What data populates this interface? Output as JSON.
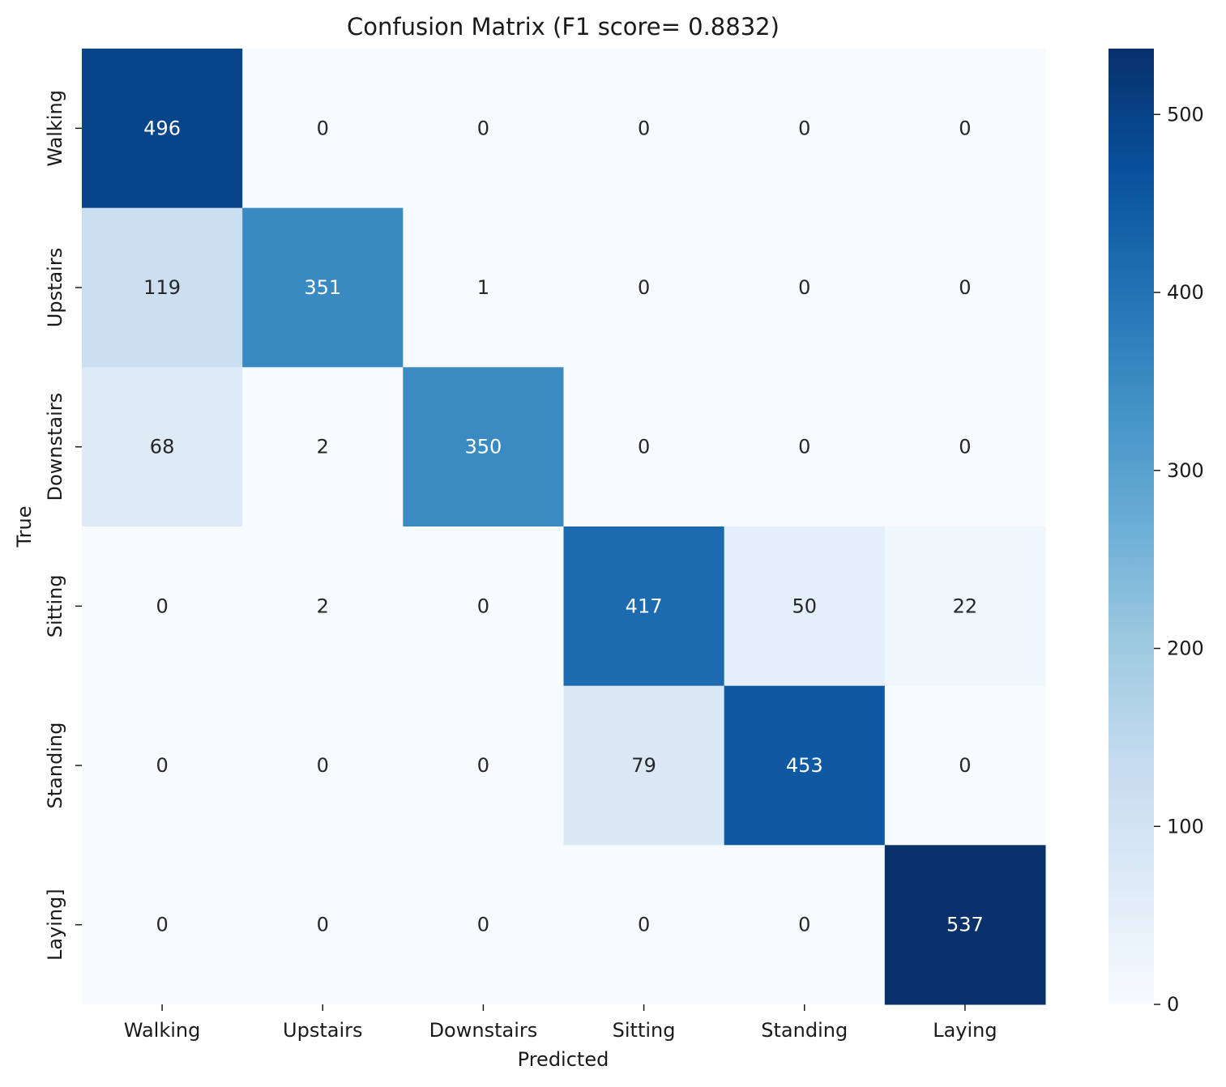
{
  "chart_data": {
    "type": "heatmap",
    "title": "Confusion Matrix (F1 score= 0.8832)",
    "xlabel": "Predicted",
    "ylabel": "True",
    "x_categories": [
      "Walking",
      "Upstairs",
      "Downstairs",
      "Sitting",
      "Standing",
      "Laying"
    ],
    "y_categories": [
      "Walking",
      "Upstairs",
      "Downstairs",
      "Sitting",
      "Standing",
      "Laying]"
    ],
    "values": [
      [
        496,
        0,
        0,
        0,
        0,
        0
      ],
      [
        119,
        351,
        1,
        0,
        0,
        0
      ],
      [
        68,
        2,
        350,
        0,
        0,
        0
      ],
      [
        0,
        2,
        0,
        417,
        50,
        22
      ],
      [
        0,
        0,
        0,
        79,
        453,
        0
      ],
      [
        0,
        0,
        0,
        0,
        0,
        537
      ]
    ],
    "colormap": "Blues",
    "colorbar": {
      "range": [
        0,
        537
      ],
      "ticks": [
        0,
        100,
        200,
        300,
        400,
        500
      ]
    },
    "annotations": true,
    "grid": false
  }
}
